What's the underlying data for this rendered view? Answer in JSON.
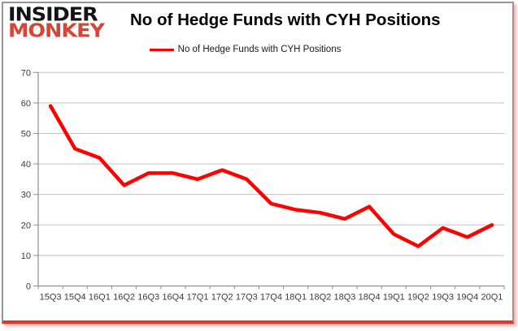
{
  "header": {
    "logo_line1": "INSIDER",
    "logo_line2": "MONKEY",
    "title": "No of Hedge Funds with CYH Positions"
  },
  "legend": {
    "label": "No of Hedge Funds with CYH Positions"
  },
  "chart_data": {
    "type": "line",
    "title": "No of Hedge Funds with CYH Positions",
    "xlabel": "",
    "ylabel": "",
    "categories": [
      "15Q3",
      "15Q4",
      "16Q1",
      "16Q2",
      "16Q3",
      "16Q4",
      "17Q1",
      "17Q2",
      "17Q3",
      "17Q4",
      "18Q1",
      "18Q2",
      "18Q3",
      "18Q4",
      "19Q1",
      "19Q2",
      "19Q3",
      "19Q4",
      "20Q1"
    ],
    "series": [
      {
        "name": "No of Hedge Funds with CYH Positions",
        "values": [
          59,
          45,
          42,
          33,
          37,
          37,
          35,
          38,
          35,
          27,
          25,
          24,
          22,
          26,
          17,
          13,
          19,
          16,
          20
        ],
        "color": "#ff0000"
      }
    ],
    "ylim": [
      0,
      70
    ],
    "yticks": [
      0,
      10,
      20,
      30,
      40,
      50,
      60,
      70
    ],
    "grid": "horizontal",
    "legend_position": "top-center"
  },
  "colors": {
    "line": "#ff0000",
    "gridline": "#c3c3c3",
    "axis": "#8e8e8e",
    "tick_label": "#3b3b3b",
    "logo_black": "#141414",
    "logo_red": "#d54636",
    "frame_red": "#e8352b"
  }
}
